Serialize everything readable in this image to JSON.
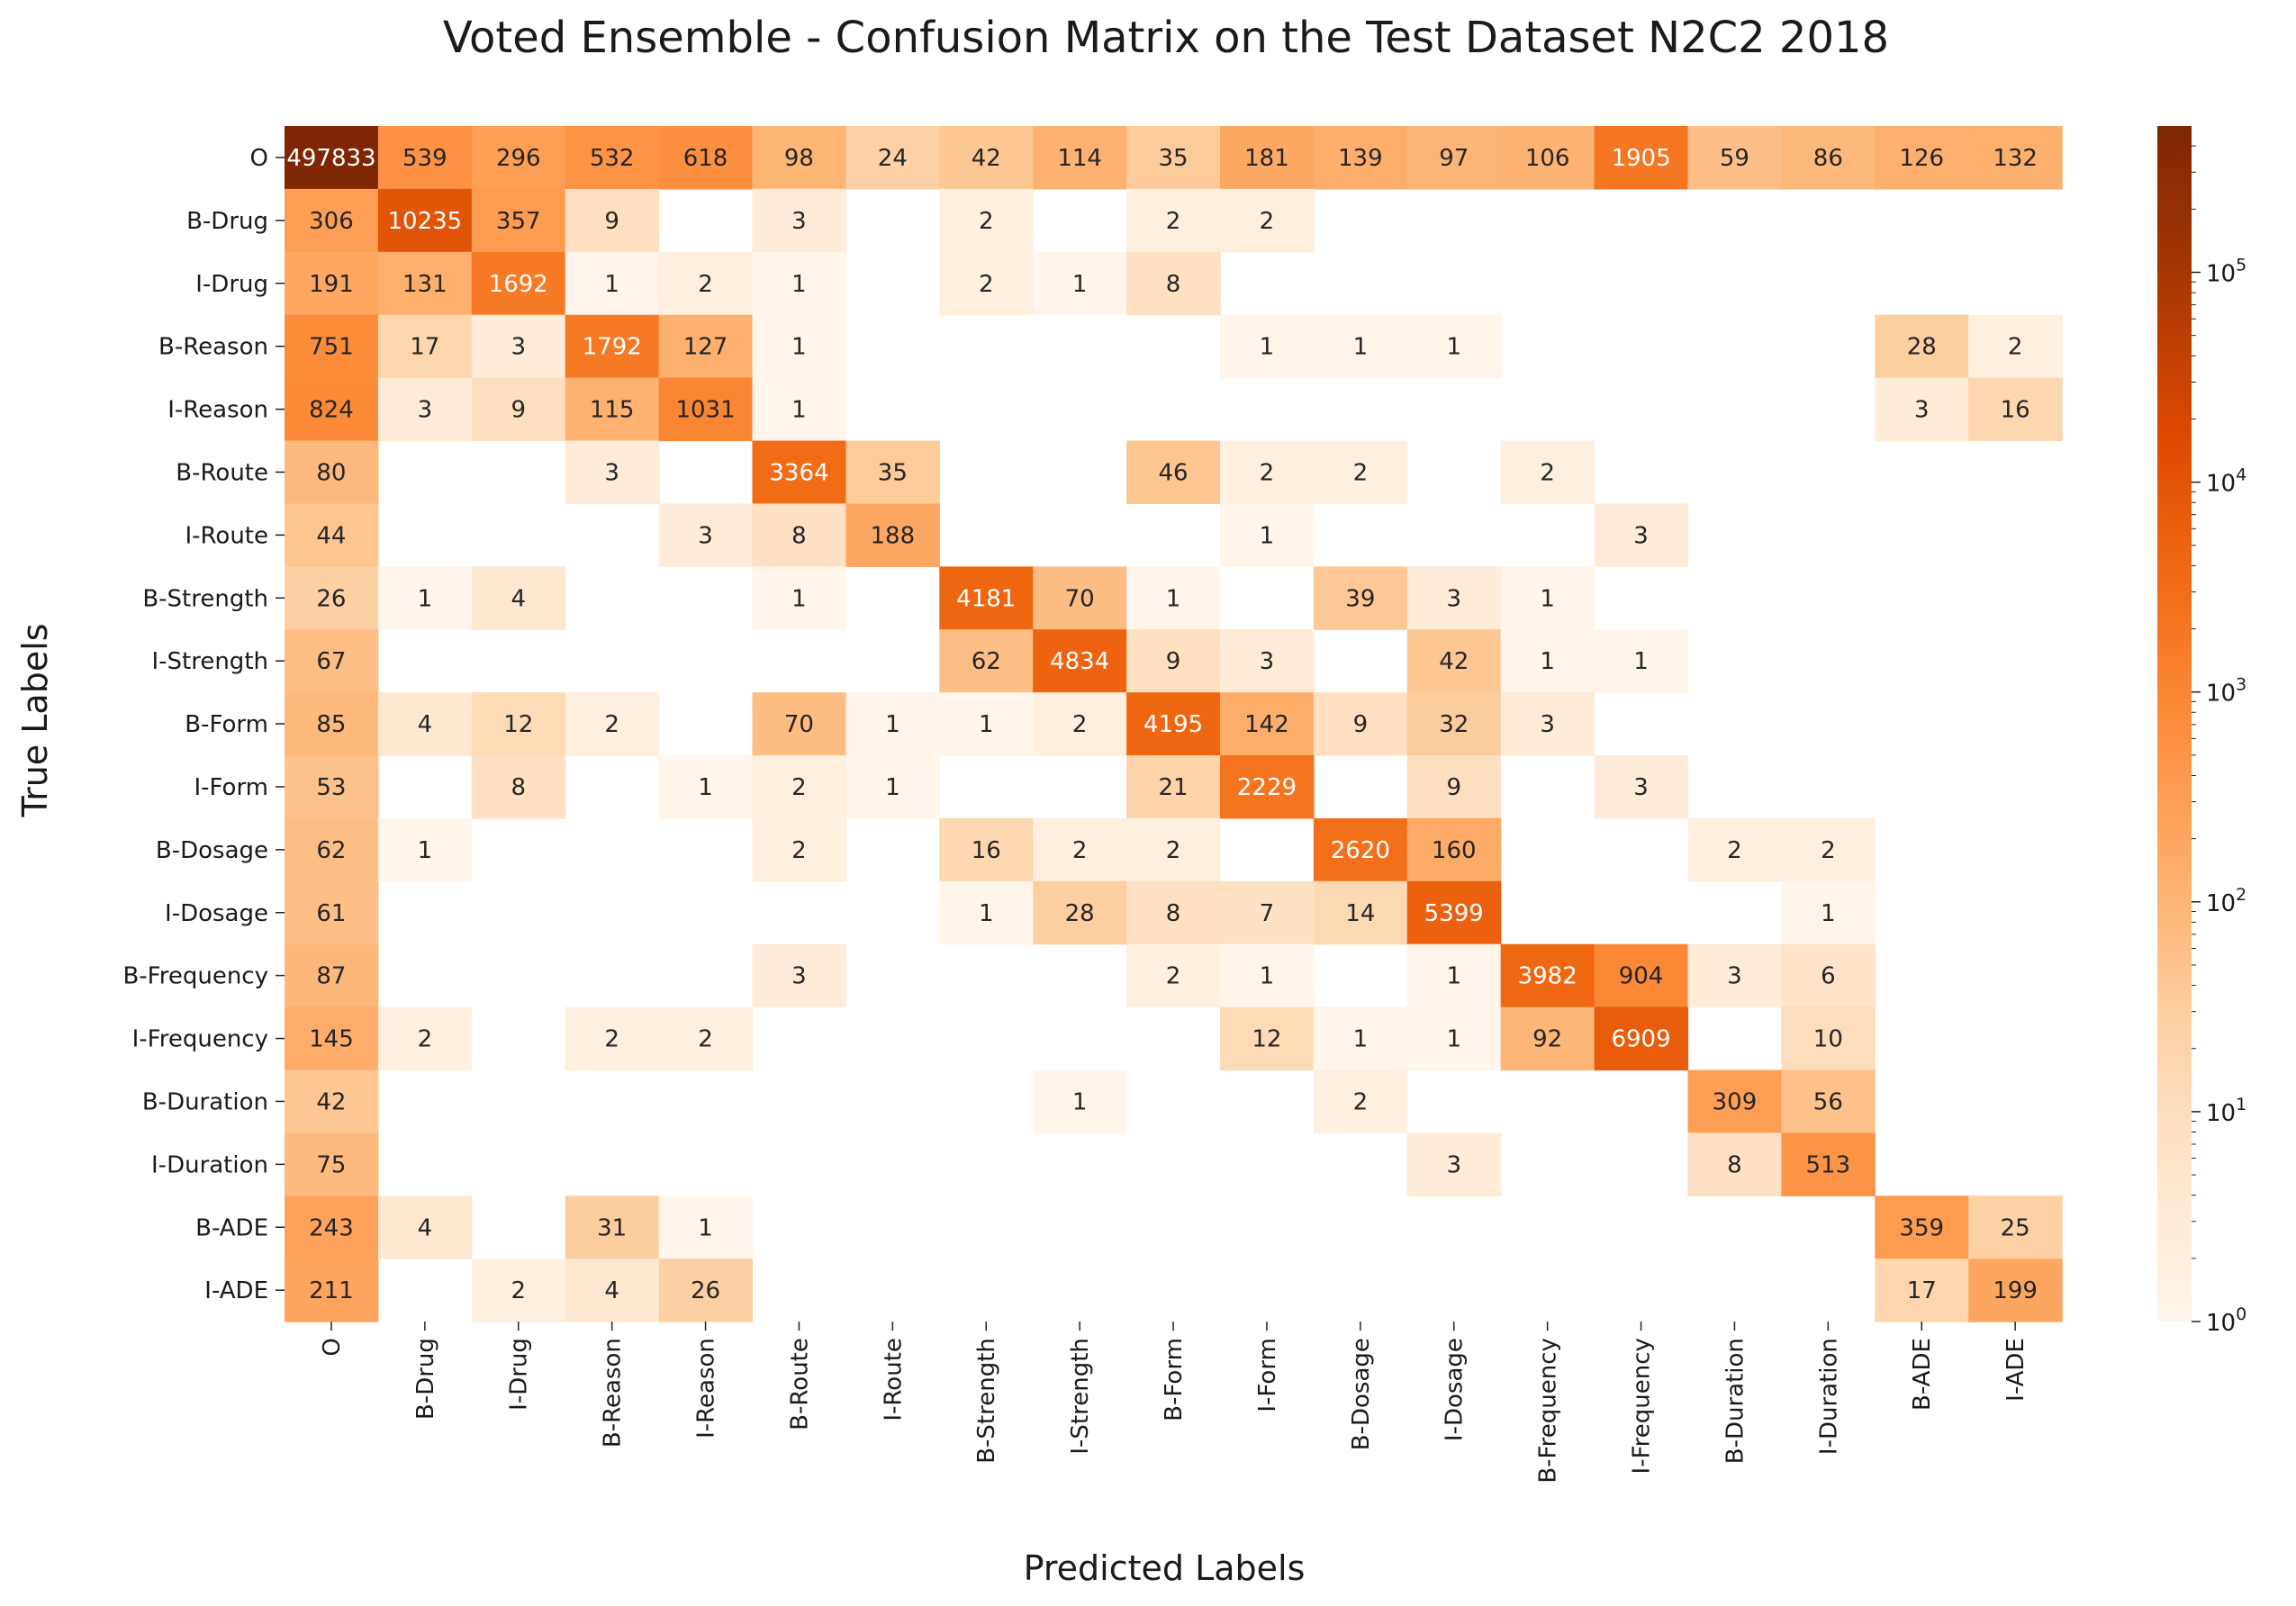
{
  "chart_data": {
    "type": "heatmap",
    "title": "Voted Ensemble - Confusion Matrix on the Test Dataset N2C2 2018",
    "xlabel": "Predicted Labels",
    "ylabel": "True Labels",
    "labels": [
      "O",
      "B-Drug",
      "I-Drug",
      "B-Reason",
      "I-Reason",
      "B-Route",
      "I-Route",
      "B-Strength",
      "I-Strength",
      "B-Form",
      "I-Form",
      "B-Dosage",
      "I-Dosage",
      "B-Frequency",
      "I-Frequency",
      "B-Duration",
      "I-Duration",
      "B-ADE",
      "I-ADE"
    ],
    "matrix": [
      [
        497833,
        539,
        296,
        532,
        618,
        98,
        24,
        42,
        114,
        35,
        181,
        139,
        97,
        106,
        1905,
        59,
        86,
        126,
        132
      ],
      [
        306,
        10235,
        357,
        9,
        null,
        3,
        null,
        2,
        null,
        2,
        2,
        null,
        null,
        null,
        null,
        null,
        null,
        null,
        null
      ],
      [
        191,
        131,
        1692,
        1,
        2,
        1,
        null,
        2,
        1,
        8,
        null,
        null,
        null,
        null,
        null,
        null,
        null,
        null,
        null
      ],
      [
        751,
        17,
        3,
        1792,
        127,
        1,
        null,
        null,
        null,
        null,
        1,
        1,
        1,
        null,
        null,
        null,
        null,
        28,
        2
      ],
      [
        824,
        3,
        9,
        115,
        1031,
        1,
        null,
        null,
        null,
        null,
        null,
        null,
        null,
        null,
        null,
        null,
        null,
        3,
        16
      ],
      [
        80,
        null,
        null,
        3,
        null,
        3364,
        35,
        null,
        null,
        46,
        2,
        2,
        null,
        2,
        null,
        null,
        null,
        null,
        null
      ],
      [
        44,
        null,
        null,
        null,
        3,
        8,
        188,
        null,
        null,
        null,
        1,
        null,
        null,
        null,
        3,
        null,
        null,
        null,
        null
      ],
      [
        26,
        1,
        4,
        null,
        null,
        1,
        null,
        4181,
        70,
        1,
        null,
        39,
        3,
        1,
        null,
        null,
        null,
        null,
        null
      ],
      [
        67,
        null,
        null,
        null,
        null,
        null,
        null,
        62,
        4834,
        9,
        3,
        null,
        42,
        1,
        1,
        null,
        null,
        null,
        null
      ],
      [
        85,
        4,
        12,
        2,
        null,
        70,
        1,
        1,
        2,
        4195,
        142,
        9,
        32,
        3,
        null,
        null,
        null,
        null,
        null
      ],
      [
        53,
        null,
        8,
        null,
        1,
        2,
        1,
        null,
        null,
        21,
        2229,
        null,
        9,
        null,
        3,
        null,
        null,
        null,
        null
      ],
      [
        62,
        1,
        null,
        null,
        null,
        2,
        null,
        16,
        2,
        2,
        null,
        2620,
        160,
        null,
        null,
        2,
        2,
        null,
        null
      ],
      [
        61,
        null,
        null,
        null,
        null,
        null,
        null,
        1,
        28,
        8,
        7,
        14,
        5399,
        null,
        null,
        null,
        1,
        null,
        null
      ],
      [
        87,
        null,
        null,
        null,
        null,
        3,
        null,
        null,
        null,
        2,
        1,
        null,
        1,
        3982,
        904,
        3,
        6,
        null,
        null
      ],
      [
        145,
        2,
        null,
        2,
        2,
        null,
        null,
        null,
        null,
        null,
        12,
        1,
        1,
        92,
        6909,
        null,
        10,
        null,
        null
      ],
      [
        42,
        null,
        null,
        null,
        null,
        null,
        null,
        null,
        1,
        null,
        null,
        2,
        null,
        null,
        null,
        309,
        56,
        null,
        null
      ],
      [
        75,
        null,
        null,
        null,
        null,
        null,
        null,
        null,
        null,
        null,
        null,
        null,
        3,
        null,
        null,
        8,
        513,
        null,
        null
      ],
      [
        243,
        4,
        null,
        31,
        1,
        null,
        null,
        null,
        null,
        null,
        null,
        null,
        null,
        null,
        null,
        null,
        null,
        359,
        25
      ],
      [
        211,
        null,
        2,
        4,
        26,
        null,
        null,
        null,
        null,
        null,
        null,
        null,
        null,
        null,
        null,
        null,
        null,
        17,
        199
      ]
    ],
    "scale": "log",
    "vmin": 1,
    "vmax": 497833,
    "colormap": "Oranges",
    "colorbar": {
      "ticks": [
        1,
        10,
        100,
        1000,
        10000,
        100000
      ],
      "tick_base": "10",
      "tick_exponents": [
        "0",
        "1",
        "2",
        "3",
        "4",
        "5"
      ]
    }
  }
}
